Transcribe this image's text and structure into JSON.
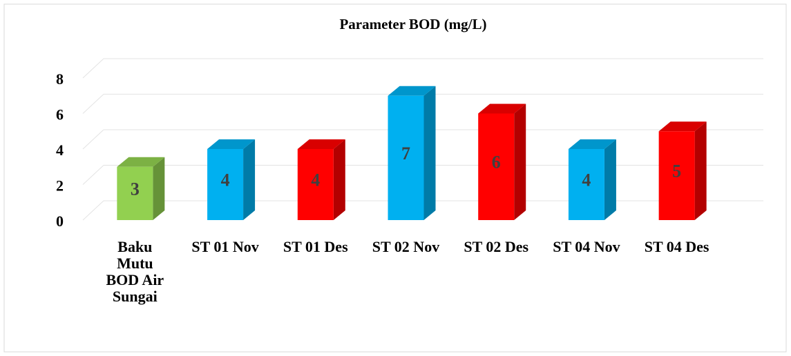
{
  "chart_data": {
    "type": "bar3d",
    "title": "Parameter BOD (mg/L)",
    "categories": [
      "Baku Mutu BOD Air Sungai",
      "ST 01 Nov",
      "ST 01 Des",
      "ST 02 Nov",
      "ST 02 Des",
      "ST 04 Nov",
      "ST 04 Des"
    ],
    "values": [
      3,
      4,
      4,
      7,
      6,
      4,
      5
    ],
    "colors": [
      "#92d050",
      "#00b0f0",
      "#ff0000",
      "#00b0f0",
      "#ff0000",
      "#00b0f0",
      "#ff0000"
    ],
    "ylim": [
      0,
      8
    ],
    "yticks": [
      0,
      2,
      4,
      6,
      8
    ],
    "grid": true
  }
}
